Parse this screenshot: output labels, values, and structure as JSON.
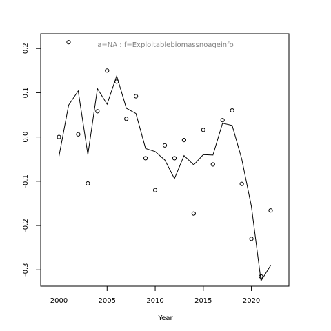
{
  "chart_data": {
    "type": "scatter",
    "title": "",
    "annotation": "a=NA  :  f=Exploitablebiomassnoageinfo",
    "xlabel": "Year",
    "ylabel": "",
    "xlim": [
      1998.1,
      2023.9
    ],
    "ylim": [
      -0.337,
      0.233
    ],
    "x_ticks": [
      2000,
      2005,
      2010,
      2015,
      2020
    ],
    "x_tick_labels": [
      "2000",
      "2005",
      "2010",
      "2015",
      "2020"
    ],
    "y_ticks": [
      -0.3,
      -0.2,
      -0.1,
      0.0,
      0.1,
      0.2
    ],
    "y_tick_labels": [
      "-0.3",
      "-0.2",
      "-0.1",
      "0.0",
      "0.1",
      "0.2"
    ],
    "grid": false,
    "series": [
      {
        "type": "points",
        "x": [
          2000,
          2001,
          2002,
          2003,
          2004,
          2005,
          2006,
          2007,
          2008,
          2009,
          2010,
          2011,
          2012,
          2013,
          2014,
          2015,
          2016,
          2017,
          2018,
          2019,
          2020,
          2021,
          2022
        ],
        "y": [
          0.0,
          0.214,
          0.006,
          -0.105,
          0.058,
          0.15,
          0.125,
          0.041,
          0.092,
          -0.048,
          -0.12,
          -0.019,
          -0.048,
          -0.007,
          -0.173,
          0.016,
          -0.062,
          0.038,
          0.06,
          -0.106,
          -0.23,
          -0.315,
          -0.166
        ]
      },
      {
        "type": "line",
        "x": [
          2000,
          2001,
          2002,
          2003,
          2004,
          2005,
          2006,
          2007,
          2008,
          2009,
          2010,
          2011,
          2012,
          2013,
          2014,
          2015,
          2016,
          2017,
          2018,
          2019,
          2020,
          2021,
          2022
        ],
        "y": [
          -0.044,
          0.072,
          0.104,
          -0.04,
          0.109,
          0.074,
          0.138,
          0.065,
          0.053,
          -0.026,
          -0.033,
          -0.052,
          -0.094,
          -0.042,
          -0.063,
          -0.04,
          -0.041,
          0.031,
          0.026,
          -0.05,
          -0.157,
          -0.325,
          -0.29
        ]
      }
    ]
  }
}
